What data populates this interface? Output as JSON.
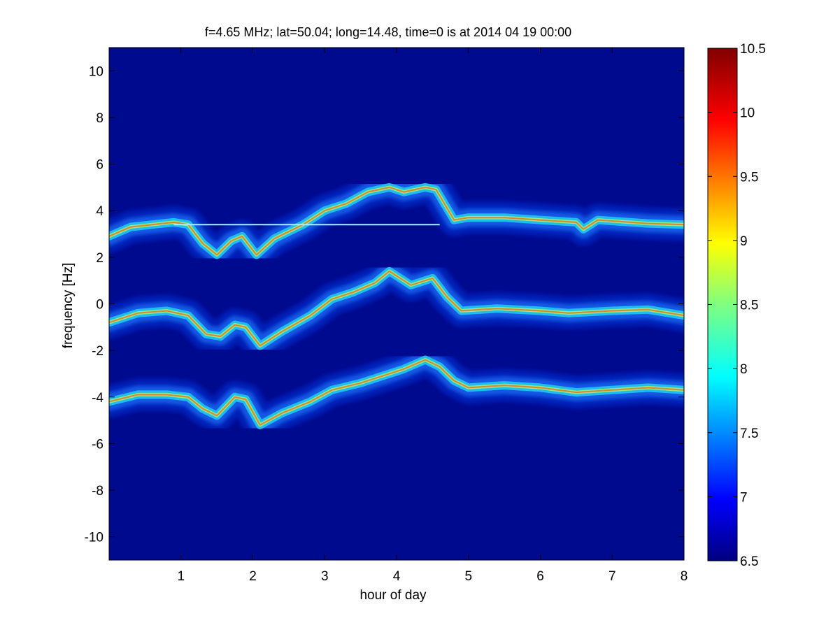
{
  "chart_data": {
    "type": "heatmap",
    "title": "f=4.65 MHz;  lat=50.04; long=14.48, time=0 is at 2014 04 19 00:00",
    "xlabel": "hour of day",
    "ylabel": "frequency [Hz]",
    "xlim": [
      0,
      8
    ],
    "ylim": [
      -11,
      11
    ],
    "x_ticks": [
      1,
      2,
      3,
      4,
      5,
      6,
      7,
      8
    ],
    "y_ticks": [
      -10,
      -8,
      -6,
      -4,
      -2,
      0,
      2,
      4,
      6,
      8,
      10
    ],
    "colorscale": "jet",
    "background_color": "#000a8f",
    "colorbar": {
      "min": 6.5,
      "max": 10.5,
      "ticks": [
        6.5,
        7,
        7.5,
        8,
        8.5,
        9,
        9.5,
        10,
        10.5
      ]
    },
    "reference_line": {
      "y": 3.4,
      "x_range": [
        0.9,
        4.6
      ]
    },
    "traces": [
      {
        "name": "upper",
        "points": [
          [
            0,
            2.9
          ],
          [
            0.3,
            3.3
          ],
          [
            0.6,
            3.4
          ],
          [
            0.9,
            3.5
          ],
          [
            1.1,
            3.4
          ],
          [
            1.3,
            2.6
          ],
          [
            1.5,
            2.1
          ],
          [
            1.7,
            2.7
          ],
          [
            1.85,
            2.9
          ],
          [
            2.05,
            2.1
          ],
          [
            2.3,
            2.8
          ],
          [
            2.7,
            3.4
          ],
          [
            3.0,
            4.0
          ],
          [
            3.3,
            4.3
          ],
          [
            3.6,
            4.8
          ],
          [
            3.9,
            5.0
          ],
          [
            4.1,
            4.8
          ],
          [
            4.4,
            5.0
          ],
          [
            4.55,
            4.9
          ],
          [
            4.8,
            3.6
          ],
          [
            5.0,
            3.7
          ],
          [
            5.5,
            3.7
          ],
          [
            6.0,
            3.6
          ],
          [
            6.5,
            3.5
          ],
          [
            6.6,
            3.2
          ],
          [
            6.8,
            3.6
          ],
          [
            7.5,
            3.45
          ],
          [
            8.0,
            3.4
          ]
        ]
      },
      {
        "name": "middle",
        "points": [
          [
            0,
            -0.8
          ],
          [
            0.4,
            -0.4
          ],
          [
            0.8,
            -0.3
          ],
          [
            1.1,
            -0.5
          ],
          [
            1.35,
            -1.3
          ],
          [
            1.55,
            -1.4
          ],
          [
            1.75,
            -0.9
          ],
          [
            1.9,
            -1.0
          ],
          [
            2.1,
            -1.8
          ],
          [
            2.4,
            -1.2
          ],
          [
            2.8,
            -0.5
          ],
          [
            3.1,
            0.2
          ],
          [
            3.4,
            0.5
          ],
          [
            3.7,
            0.9
          ],
          [
            3.9,
            1.4
          ],
          [
            4.2,
            0.8
          ],
          [
            4.5,
            1.1
          ],
          [
            4.7,
            0.3
          ],
          [
            4.9,
            -0.3
          ],
          [
            5.4,
            -0.2
          ],
          [
            6.0,
            -0.3
          ],
          [
            6.4,
            -0.4
          ],
          [
            7.0,
            -0.3
          ],
          [
            7.5,
            -0.25
          ],
          [
            8.0,
            -0.5
          ]
        ]
      },
      {
        "name": "lower",
        "points": [
          [
            0,
            -4.2
          ],
          [
            0.4,
            -3.9
          ],
          [
            0.8,
            -3.9
          ],
          [
            1.1,
            -4.0
          ],
          [
            1.3,
            -4.5
          ],
          [
            1.5,
            -4.8
          ],
          [
            1.75,
            -4.0
          ],
          [
            1.9,
            -4.1
          ],
          [
            2.1,
            -5.2
          ],
          [
            2.4,
            -4.7
          ],
          [
            2.8,
            -4.2
          ],
          [
            3.1,
            -3.7
          ],
          [
            3.5,
            -3.4
          ],
          [
            3.8,
            -3.1
          ],
          [
            4.1,
            -2.8
          ],
          [
            4.4,
            -2.4
          ],
          [
            4.6,
            -2.7
          ],
          [
            4.8,
            -3.3
          ],
          [
            5.0,
            -3.6
          ],
          [
            5.5,
            -3.5
          ],
          [
            6.0,
            -3.6
          ],
          [
            6.5,
            -3.8
          ],
          [
            7.0,
            -3.7
          ],
          [
            7.5,
            -3.6
          ],
          [
            8.0,
            -3.7
          ]
        ]
      }
    ]
  }
}
